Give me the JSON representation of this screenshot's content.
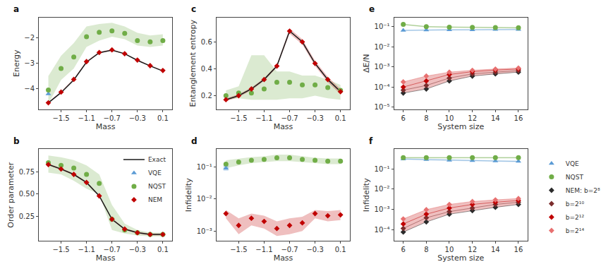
{
  "chart_data": [
    {
      "type": "line",
      "title": "a",
      "xlabel": "Mass",
      "ylabel": "Energy",
      "x": [
        -1.7,
        -1.5,
        -1.3,
        -1.1,
        -0.9,
        -0.7,
        -0.5,
        -0.3,
        -0.1,
        0.1
      ],
      "xlim": [
        -1.85,
        0.25
      ],
      "xticks": [
        -1.5,
        -1.1,
        -0.7,
        -0.3,
        0.1
      ],
      "ylim": [
        -4.8,
        -1.2
      ],
      "yticks": [
        -4,
        -3,
        -2
      ],
      "grid": false,
      "series": [
        {
          "name": "Exact",
          "color": "#1a1a1a",
          "line_style": "solid",
          "values": [
            -4.55,
            -4.15,
            -3.65,
            -2.95,
            -2.58,
            -2.48,
            -2.62,
            -2.88,
            -3.1,
            -3.3
          ]
        },
        {
          "name": "VQE",
          "color": "#5b9bd5",
          "marker": "triangle",
          "line_style": "none",
          "values": [
            -4.2,
            null,
            null,
            null,
            null,
            null,
            null,
            null,
            null,
            null
          ]
        },
        {
          "name": "NQST",
          "color": "#70ad47",
          "marker": "circle",
          "line_style": "none",
          "values": [
            -4.05,
            -3.2,
            -2.75,
            -1.95,
            -1.78,
            -1.72,
            -1.82,
            -2.1,
            -2.15,
            -2.1
          ],
          "lo": [
            -4.6,
            -3.65,
            -3.2,
            -2.35,
            -2.1,
            -1.95,
            -2.05,
            -2.3,
            -2.35,
            -2.3
          ],
          "hi": [
            -3.5,
            -2.7,
            -2.2,
            -1.55,
            -1.45,
            -1.4,
            -1.55,
            -1.8,
            -1.9,
            -1.85
          ]
        },
        {
          "name": "NEM",
          "color": "#c00000",
          "marker": "diamond",
          "line_style": "none",
          "values": [
            -4.55,
            -4.13,
            -3.63,
            -2.93,
            -2.57,
            -2.47,
            -2.62,
            -2.87,
            -3.09,
            -3.28
          ],
          "lo": [
            -4.57,
            -4.16,
            -3.66,
            -2.96,
            -2.6,
            -2.5,
            -2.64,
            -2.89,
            -3.11,
            -3.3
          ],
          "hi": [
            -4.53,
            -4.1,
            -3.6,
            -2.9,
            -2.54,
            -2.44,
            -2.6,
            -2.85,
            -3.07,
            -3.26
          ]
        }
      ]
    },
    {
      "type": "line",
      "title": "b",
      "xlabel": "Mass",
      "ylabel": "Order parameter",
      "x": [
        -1.7,
        -1.5,
        -1.3,
        -1.1,
        -0.9,
        -0.7,
        -0.5,
        -0.3,
        -0.1,
        0.1
      ],
      "xlim": [
        -1.85,
        0.25
      ],
      "xticks": [
        -1.5,
        -1.1,
        -0.7,
        -0.3,
        0.1
      ],
      "ylim": [
        -0.02,
        1.0
      ],
      "yticks": [
        0.25,
        {
          "value": 0.5,
          "label": "0.50"
        },
        0.75
      ],
      "grid": false,
      "legend": "upper right",
      "series": [
        {
          "name": "Exact",
          "color": "#1a1a1a",
          "line_style": "solid",
          "values": [
            0.83,
            0.78,
            0.72,
            0.63,
            0.48,
            0.22,
            0.11,
            0.07,
            0.05,
            0.05
          ]
        },
        {
          "name": "VQE",
          "color": "#5b9bd5",
          "marker": "triangle",
          "line_style": "none",
          "values": [
            null,
            null,
            null,
            null,
            null,
            null,
            null,
            null,
            null,
            null
          ]
        },
        {
          "name": "NQST",
          "color": "#70ad47",
          "marker": "circle",
          "line_style": "none",
          "values": [
            0.85,
            0.82,
            0.79,
            0.72,
            0.62,
            0.22,
            0.1,
            0.07,
            0.05,
            0.05
          ],
          "lo": [
            0.74,
            0.72,
            0.65,
            0.56,
            0.5,
            0.1,
            0.06,
            0.04,
            0.03,
            0.03
          ],
          "hi": [
            0.93,
            0.91,
            0.88,
            0.82,
            0.72,
            0.38,
            0.17,
            0.1,
            0.07,
            0.07
          ]
        },
        {
          "name": "NEM",
          "color": "#c00000",
          "marker": "diamond",
          "line_style": "none",
          "values": [
            0.83,
            0.78,
            0.72,
            0.63,
            0.48,
            0.22,
            0.11,
            0.07,
            0.05,
            0.05
          ],
          "lo": [
            0.82,
            0.77,
            0.71,
            0.62,
            0.47,
            0.21,
            0.1,
            0.06,
            0.04,
            0.04
          ],
          "hi": [
            0.84,
            0.79,
            0.73,
            0.64,
            0.49,
            0.23,
            0.12,
            0.08,
            0.06,
            0.06
          ]
        }
      ]
    },
    {
      "type": "line",
      "title": "c",
      "xlabel": "Mass",
      "ylabel": "Entanglement entropy",
      "x": [
        -1.7,
        -1.5,
        -1.3,
        -1.1,
        -0.9,
        -0.7,
        -0.5,
        -0.3,
        -0.1,
        0.1
      ],
      "xlim": [
        -1.85,
        0.25
      ],
      "xticks": [
        -1.5,
        -1.1,
        -0.7,
        -0.3,
        0.1
      ],
      "ylim": [
        0.1,
        0.78
      ],
      "yticks": [
        0.2,
        0.4,
        0.6
      ],
      "grid": false,
      "series": [
        {
          "name": "Exact",
          "color": "#1a1a1a",
          "line_style": "solid",
          "values": [
            0.17,
            0.2,
            0.25,
            0.32,
            0.42,
            0.68,
            0.6,
            0.44,
            0.32,
            0.23
          ]
        },
        {
          "name": "NQST",
          "color": "#70ad47",
          "marker": "circle",
          "line_style": "none",
          "values": [
            0.2,
            0.22,
            0.22,
            0.25,
            0.3,
            0.3,
            0.28,
            0.28,
            0.26,
            0.24
          ],
          "lo": [
            0.17,
            0.18,
            0.17,
            0.17,
            0.17,
            0.18,
            0.18,
            0.2,
            0.18,
            0.17
          ],
          "hi": [
            0.24,
            0.27,
            0.5,
            0.5,
            0.38,
            0.38,
            0.35,
            0.35,
            0.32,
            0.28
          ]
        },
        {
          "name": "NEM",
          "color": "#c00000",
          "marker": "diamond",
          "line_style": "none",
          "values": [
            0.17,
            0.2,
            0.25,
            0.32,
            0.42,
            0.68,
            0.6,
            0.44,
            0.32,
            0.23
          ],
          "lo": [
            0.16,
            0.19,
            0.24,
            0.31,
            0.41,
            0.66,
            0.58,
            0.42,
            0.3,
            0.21
          ],
          "hi": [
            0.18,
            0.21,
            0.26,
            0.33,
            0.43,
            0.7,
            0.62,
            0.46,
            0.34,
            0.25
          ]
        }
      ]
    },
    {
      "type": "line",
      "title": "d",
      "xlabel": "Mass",
      "ylabel": "Infidelity",
      "log": "y",
      "x": [
        -1.7,
        -1.5,
        -1.3,
        -1.1,
        -0.9,
        -0.7,
        -0.5,
        -0.3,
        -0.1,
        0.1
      ],
      "xlim": [
        -1.85,
        0.25
      ],
      "xticks": [
        -1.5,
        -1.1,
        -0.7,
        -0.3,
        0.1
      ],
      "ylim": [
        0.0005,
        0.35
      ],
      "yticks": [
        {
          "value": 0.001,
          "label": "10⁻³"
        },
        {
          "value": 0.01,
          "label": "10⁻²"
        },
        {
          "value": 0.1,
          "label": "10⁻¹"
        }
      ],
      "grid": false,
      "series": [
        {
          "name": "NQST",
          "color": "#70ad47",
          "marker": "circle",
          "line_style": "none",
          "values": [
            0.12,
            0.14,
            0.16,
            0.17,
            0.19,
            0.19,
            0.17,
            0.16,
            0.15,
            0.15
          ],
          "lo": [
            0.09,
            0.11,
            0.13,
            0.14,
            0.15,
            0.15,
            0.14,
            0.13,
            0.12,
            0.12
          ],
          "hi": [
            0.16,
            0.18,
            0.2,
            0.21,
            0.24,
            0.24,
            0.21,
            0.19,
            0.18,
            0.18
          ]
        },
        {
          "name": "VQE",
          "color": "#5b9bd5",
          "marker": "triangle",
          "line_style": "none",
          "values": [
            0.09,
            null,
            null,
            null,
            null,
            null,
            null,
            null,
            null,
            null
          ],
          "lo": [
            0.075,
            null,
            null,
            null,
            null,
            null,
            null,
            null,
            null,
            null
          ],
          "hi": [
            0.11,
            null,
            null,
            null,
            null,
            null,
            null,
            null,
            null,
            null
          ]
        },
        {
          "name": "NEM",
          "color": "#c00000",
          "marker": "diamond",
          "line_style": "none",
          "values": [
            0.0035,
            0.0015,
            0.0025,
            0.002,
            0.0012,
            0.0015,
            0.0018,
            0.0035,
            0.003,
            0.0032
          ],
          "lo": [
            0.0025,
            0.0008,
            0.0015,
            0.0012,
            0.0007,
            0.0008,
            0.001,
            0.0025,
            0.002,
            0.0022
          ],
          "hi": [
            0.0045,
            0.0025,
            0.0035,
            0.003,
            0.002,
            0.0025,
            0.0028,
            0.0045,
            0.0042,
            0.0045
          ]
        }
      ]
    },
    {
      "type": "line",
      "title": "e",
      "xlabel": "System size",
      "ylabel": "ΔE/N",
      "log": "y",
      "x": [
        6,
        8,
        10,
        12,
        14,
        16
      ],
      "xlim": [
        5.2,
        16.8
      ],
      "xticks": [
        6,
        8,
        10,
        12,
        14,
        16
      ],
      "ylim": [
        8e-06,
        0.28
      ],
      "yticks": [
        {
          "value": 1e-05,
          "label": "10⁻⁵"
        },
        {
          "value": 0.0001,
          "label": "10⁻⁴"
        },
        {
          "value": 0.001,
          "label": "10⁻³"
        },
        {
          "value": 0.01,
          "label": "10⁻²"
        },
        {
          "value": 0.1,
          "label": "10⁻¹"
        }
      ],
      "grid": false,
      "band": {
        "color": "#c00000",
        "lo": [
          5e-05,
          8e-05,
          0.0002,
          0.00035,
          0.00045,
          0.00055
        ],
        "hi": [
          0.00018,
          0.00035,
          0.00055,
          0.00068,
          0.00078,
          0.00088
        ]
      },
      "series": [
        {
          "name": "VQE",
          "color": "#5b9bd5",
          "marker": "triangle",
          "line_style": "solid",
          "values": [
            0.065,
            0.068,
            0.07,
            0.07,
            0.072,
            0.072
          ],
          "lo": [
            0.0598,
            0.06256,
            0.0644,
            0.0644,
            0.06624,
            0.06624
          ],
          "hi": [
            0.0702,
            0.07344,
            0.0756,
            0.0756,
            0.07776,
            0.07776
          ]
        },
        {
          "name": "NQST",
          "color": "#70ad47",
          "marker": "circle",
          "line_style": "solid",
          "values": [
            0.13,
            0.1,
            0.095,
            0.092,
            0.09,
            0.088
          ],
          "lo": [
            0.1209,
            0.093,
            0.08835,
            0.08556,
            0.0837,
            0.08184
          ],
          "hi": [
            0.1391,
            0.107,
            0.10165,
            0.09844,
            0.0963,
            0.09416
          ]
        },
        {
          "name": "NEM: b=2⁸",
          "color": "#2b2b2b",
          "marker": "diamond",
          "line_style": "solid",
          "values": [
            5e-05,
            8e-05,
            0.0002,
            0.00035,
            0.00045,
            0.00055
          ]
        },
        {
          "name": "b=2¹⁰",
          "color": "#7b2d2d",
          "marker": "diamond",
          "line_style": "solid",
          "values": [
            7e-05,
            0.00012,
            0.00028,
            0.00045,
            0.00055,
            0.00065
          ]
        },
        {
          "name": "b=2¹²",
          "color": "#c00000",
          "marker": "diamond",
          "line_style": "solid",
          "values": [
            0.0001,
            0.0002,
            0.00042,
            0.00058,
            0.0007,
            0.00078
          ]
        },
        {
          "name": "b=2¹⁴",
          "color": "#e87070",
          "marker": "diamond",
          "line_style": "solid",
          "values": [
            0.00018,
            0.00035,
            0.00055,
            0.00068,
            0.00078,
            0.00088
          ]
        }
      ]
    },
    {
      "type": "line",
      "title": "f",
      "xlabel": "System size",
      "ylabel": "Infidelity",
      "log": "y",
      "x": [
        6,
        8,
        10,
        12,
        14,
        16
      ],
      "xlim": [
        5.2,
        16.8
      ],
      "xticks": [
        6,
        8,
        10,
        12,
        14,
        16
      ],
      "ylim": [
        3e-05,
        0.9
      ],
      "yticks": [
        {
          "value": 0.0001,
          "label": "10⁻⁴"
        },
        {
          "value": 0.001,
          "label": "10⁻³"
        },
        {
          "value": 0.01,
          "label": "10⁻²"
        },
        {
          "value": 0.1,
          "label": "10⁻¹"
        }
      ],
      "grid": false,
      "legend": "lower right",
      "band": {
        "color": "#c00000",
        "lo": [
          8e-05,
          0.00025,
          0.0006,
          0.0009,
          0.0013,
          0.0018
        ],
        "hi": [
          0.00035,
          0.001,
          0.0018,
          0.0025,
          0.003,
          0.0035
        ]
      },
      "series": [
        {
          "name": "VQE",
          "color": "#5b9bd5",
          "marker": "triangle",
          "line_style": "solid",
          "values": [
            0.3,
            0.28,
            0.26,
            0.25,
            0.24,
            0.23
          ],
          "lo": [
            0.276,
            0.2576,
            0.2392,
            0.23,
            0.2208,
            0.2116
          ],
          "hi": [
            0.324,
            0.3024,
            0.2808,
            0.27,
            0.2592,
            0.2484
          ]
        },
        {
          "name": "NQST",
          "color": "#70ad47",
          "marker": "circle",
          "line_style": "solid",
          "values": [
            0.35,
            0.35,
            0.35,
            0.35,
            0.35,
            0.35
          ],
          "lo": [
            0.3255,
            0.3255,
            0.3255,
            0.3255,
            0.3255,
            0.3255
          ],
          "hi": [
            0.3745,
            0.3745,
            0.3745,
            0.3745,
            0.3745,
            0.3745
          ]
        },
        {
          "name": "NEM: b=2⁸",
          "color": "#2b2b2b",
          "marker": "diamond",
          "line_style": "solid",
          "values": [
            8e-05,
            0.00025,
            0.0006,
            0.0009,
            0.0013,
            0.0018
          ]
        },
        {
          "name": "b=2¹⁰",
          "color": "#7b2d2d",
          "marker": "diamond",
          "line_style": "solid",
          "values": [
            0.00012,
            0.0004,
            0.0008,
            0.0012,
            0.0018,
            0.0023
          ]
        },
        {
          "name": "b=2¹²",
          "color": "#c00000",
          "marker": "diamond",
          "line_style": "solid",
          "values": [
            0.0002,
            0.0006,
            0.0012,
            0.0018,
            0.0023,
            0.0028
          ]
        },
        {
          "name": "b=2¹⁴",
          "color": "#e87070",
          "marker": "diamond",
          "line_style": "solid",
          "values": [
            0.00035,
            0.001,
            0.0018,
            0.0025,
            0.003,
            0.0035
          ]
        }
      ]
    }
  ]
}
